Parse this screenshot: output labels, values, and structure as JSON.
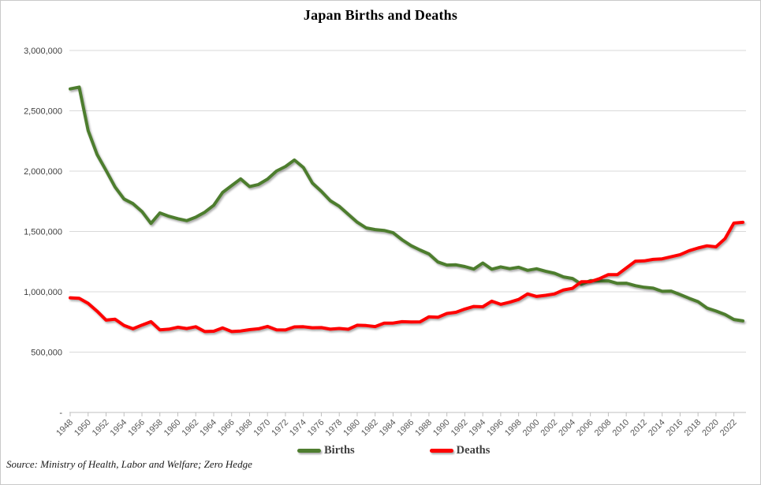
{
  "page": {
    "source_note": "Source: Ministry of Health, Labor and Welfare; Zero Hedge"
  },
  "chart_data": {
    "type": "line",
    "title": "Japan Births and Deaths",
    "x": [
      1948,
      1949,
      1950,
      1951,
      1952,
      1953,
      1954,
      1955,
      1956,
      1957,
      1958,
      1959,
      1960,
      1961,
      1962,
      1963,
      1964,
      1965,
      1966,
      1967,
      1968,
      1969,
      1970,
      1971,
      1972,
      1973,
      1974,
      1975,
      1976,
      1977,
      1978,
      1979,
      1980,
      1981,
      1982,
      1983,
      1984,
      1985,
      1986,
      1987,
      1988,
      1989,
      1990,
      1991,
      1992,
      1993,
      1994,
      1995,
      1996,
      1997,
      1998,
      1999,
      2000,
      2001,
      2002,
      2003,
      2004,
      2005,
      2006,
      2007,
      2008,
      2009,
      2010,
      2011,
      2012,
      2013,
      2014,
      2015,
      2016,
      2017,
      2018,
      2019,
      2020,
      2021,
      2022,
      2023
    ],
    "series": [
      {
        "name": "Births",
        "color": "#4e7d2f",
        "values": [
          2681624,
          2696638,
          2337507,
          2137689,
          2005162,
          1868040,
          1769580,
          1730692,
          1665278,
          1566713,
          1653469,
          1626088,
          1606041,
          1589372,
          1618616,
          1659521,
          1716761,
          1823697,
          1880000,
          1935647,
          1871839,
          1889815,
          1934239,
          2000973,
          2038682,
          2091983,
          2029989,
          1901440,
          1832617,
          1755100,
          1708643,
          1642580,
          1576889,
          1529455,
          1515392,
          1508687,
          1489780,
          1431577,
          1382946,
          1346658,
          1314006,
          1246802,
          1221585,
          1223245,
          1208989,
          1188282,
          1238328,
          1187064,
          1206555,
          1191665,
          1203147,
          1177669,
          1190547,
          1170662,
          1153855,
          1123610,
          1110721,
          1062530,
          1092674,
          1089818,
          1091156,
          1070036,
          1071305,
          1050807,
          1037232,
          1029817,
          1003609,
          1005721,
          977242,
          946146,
          918400,
          865239,
          840835,
          811622,
          770759,
          758631
        ]
      },
      {
        "name": "Deaths",
        "color": "#fe0000",
        "values": [
          950610,
          945444,
          904876,
          838998,
          765068,
          772547,
          721491,
          693523,
          724460,
          752445,
          684189,
          689959,
          706599,
          695644,
          710265,
          670770,
          673067,
          700438,
          670342,
          675006,
          686555,
          693787,
          712962,
          684521,
          683751,
          709416,
          710510,
          702275,
          703270,
          690074,
          695821,
          689664,
          722801,
          720262,
          711883,
          740038,
          740247,
          752283,
          750620,
          751172,
          793014,
          788594,
          820305,
          829797,
          856643,
          878532,
          875933,
          922139,
          896211,
          913402,
          936484,
          982031,
          961653,
          970331,
          982379,
          1014951,
          1028602,
          1083796,
          1084451,
          1108334,
          1142407,
          1141865,
          1197012,
          1253066,
          1256359,
          1268436,
          1273004,
          1290444,
          1307748,
          1340397,
          1362470,
          1381093,
          1372755,
          1439856,
          1569050,
          1575936
        ]
      }
    ],
    "ylim": [
      0,
      3000000
    ],
    "yticks": [
      {
        "value": 0,
        "label": "-"
      },
      {
        "value": 500000,
        "label": "500,000"
      },
      {
        "value": 1000000,
        "label": "1,000,000"
      },
      {
        "value": 1500000,
        "label": "1,500,000"
      },
      {
        "value": 2000000,
        "label": "2,000,000"
      },
      {
        "value": 2500000,
        "label": "2,500,000"
      },
      {
        "value": 3000000,
        "label": "3,000,000"
      }
    ],
    "xtick_labels": [
      "1948",
      "1950",
      "1952",
      "1954",
      "1956",
      "1958",
      "1960",
      "1962",
      "1964",
      "1966",
      "1968",
      "1970",
      "1972",
      "1974",
      "1976",
      "1978",
      "1980",
      "1982",
      "1984",
      "1986",
      "1988",
      "1990",
      "1992",
      "1994",
      "1996",
      "1998",
      "2000",
      "2002",
      "2004",
      "2006",
      "2008",
      "2010",
      "2012",
      "2014",
      "2016",
      "2018",
      "2020",
      "2022"
    ],
    "grid": "horizontal",
    "legend_position": "bottom",
    "colors": {
      "gridline": "#d9d9d9",
      "axis": "#bfbfbf",
      "y_label": "#404040",
      "x_label": "#595959"
    }
  }
}
